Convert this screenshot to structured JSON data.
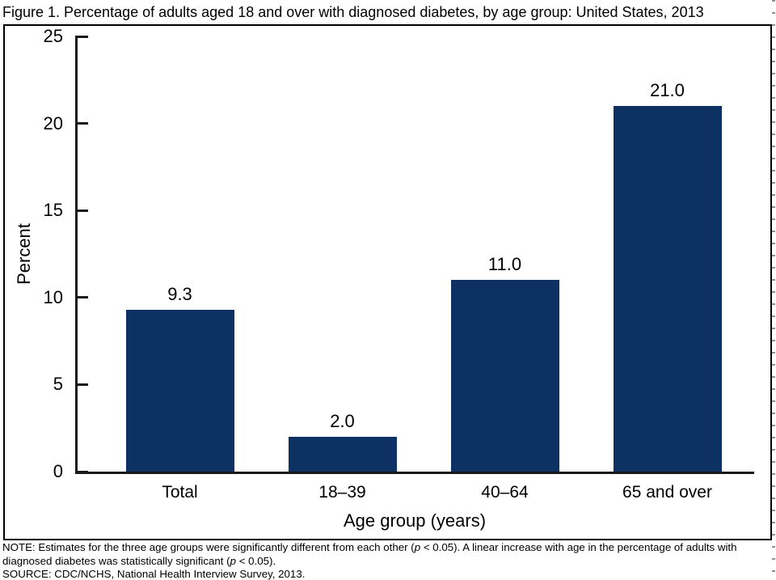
{
  "title": "Figure 1. Percentage of adults aged 18 and over with diagnosed diabetes, by age group: United States, 2013",
  "chart_data": {
    "type": "bar",
    "categories": [
      "Total",
      "18–39",
      "40–64",
      "65 and over"
    ],
    "values": [
      9.3,
      2.0,
      11.0,
      21.0
    ],
    "value_labels": [
      "9.3",
      "2.0",
      "11.0",
      "21.0"
    ],
    "xlabel": "Age group (years)",
    "ylabel": "Percent",
    "ylim": [
      0,
      25
    ],
    "yticks": [
      0,
      5,
      10,
      15,
      20,
      25
    ],
    "bar_color": "#0e3163",
    "axis_color": "#1a1a1a",
    "grid": false,
    "legend_position": "none"
  },
  "notes": {
    "note_parts": [
      {
        "text": "NOTE: Estimates for the three age groups were significantly different from each other (",
        "italic": false
      },
      {
        "text": "p",
        "italic": true
      },
      {
        "text": " < 0.05). A linear increase with age in the percentage of adults with diagnosed diabetes was statistically significant (",
        "italic": false
      },
      {
        "text": "p",
        "italic": true
      },
      {
        "text": " < 0.05).",
        "italic": false
      }
    ],
    "source": "SOURCE: CDC/NCHS, National Health Interview Survey, 2013."
  }
}
